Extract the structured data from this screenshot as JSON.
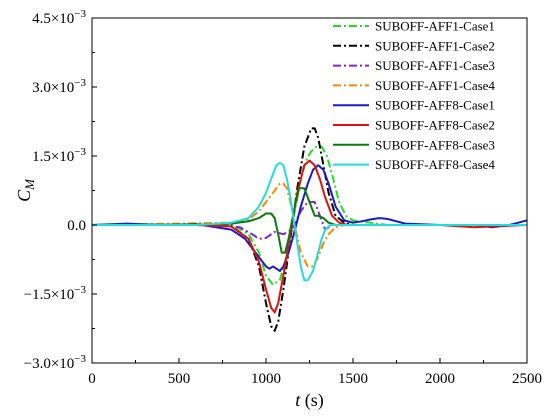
{
  "chart_data": {
    "type": "line",
    "xlabel": "t (s)",
    "ylabel": "C_M",
    "xlim": [
      0,
      2500
    ],
    "ylim": [
      -0.003,
      0.0045
    ],
    "x_ticks": [
      0,
      500,
      1000,
      1500,
      2000,
      2500
    ],
    "x_tick_labels": [
      "0",
      "500",
      "1000",
      "1500",
      "2000",
      "2500"
    ],
    "y_ticks": [
      -0.003,
      -0.0015,
      0,
      0.0015,
      0.003,
      0.0045
    ],
    "y_tick_labels": [
      "−3.0×10",
      "−1.5×10",
      "0.0",
      "1.5×10",
      "3.0×10",
      "4.5×10"
    ],
    "y_tick_exponents": [
      "−3",
      "−3",
      "",
      "−3",
      "−3",
      "−3"
    ],
    "grid": false,
    "legend_position": "top-right",
    "series": [
      {
        "name": "SUBOFF-AFF1-Case1",
        "color": "#22dd22",
        "dash": "dashdot",
        "x": [
          0,
          600,
          800,
          900,
          960,
          1000,
          1040,
          1080,
          1110,
          1140,
          1170,
          1200,
          1230,
          1260,
          1290,
          1320,
          1350,
          1380,
          1420,
          1460,
          1500,
          1700,
          2500
        ],
        "y": [
          0,
          0,
          2e-05,
          -0.0002,
          -0.0006,
          -0.0011,
          -0.0013,
          -0.0012,
          -0.0008,
          -0.0002,
          0.0004,
          0.001,
          0.0014,
          0.0016,
          0.0017,
          0.0017,
          0.0015,
          0.0011,
          0.0005,
          0.0002,
          0.0001,
          0,
          0
        ]
      },
      {
        "name": "SUBOFF-AFF1-Case2",
        "color": "#000000",
        "dash": "dashdot",
        "x": [
          0,
          600,
          800,
          900,
          960,
          1000,
          1030,
          1050,
          1070,
          1100,
          1140,
          1180,
          1220,
          1260,
          1280,
          1300,
          1330,
          1360,
          1400,
          1450,
          1500,
          1700,
          2500
        ],
        "y": [
          0,
          0,
          -2e-05,
          -0.0003,
          -0.0009,
          -0.0017,
          -0.0022,
          -0.0023,
          -0.0021,
          -0.0014,
          -0.0003,
          0.0008,
          0.0017,
          0.0021,
          0.0021,
          0.0019,
          0.0013,
          0.0007,
          0.0002,
          5e-05,
          0,
          0,
          0
        ]
      },
      {
        "name": "SUBOFF-AFF1-Case3",
        "color": "#8822cc",
        "dash": "dashdot",
        "x": [
          0,
          700,
          850,
          920,
          960,
          1000,
          1050,
          1100,
          1150,
          1200,
          1240,
          1280,
          1310,
          1340,
          1380,
          1420,
          1500,
          2500
        ],
        "y": [
          0,
          0,
          -5e-05,
          -0.0002,
          -0.0003,
          -0.00028,
          -0.00015,
          -0.0002,
          -0.0001,
          0.0003,
          0.0005,
          0.0005,
          0.0002,
          -0.0001,
          0,
          0,
          0,
          0
        ]
      },
      {
        "name": "SUBOFF-AFF1-Case4",
        "color": "#ff8800",
        "dash": "dashdot",
        "x": [
          0,
          500,
          800,
          900,
          960,
          1000,
          1040,
          1080,
          1100,
          1120,
          1140,
          1170,
          1200,
          1240,
          1270,
          1300,
          1330,
          1360,
          1400,
          1450,
          1500,
          2500
        ],
        "y": [
          0,
          3e-05,
          5e-05,
          0.00012,
          0.0003,
          0.0005,
          0.0007,
          0.0009,
          0.0009,
          0.0008,
          0.0005,
          -0.0001,
          -0.0006,
          -0.0009,
          -0.0009,
          -0.0007,
          -0.0004,
          -0.0002,
          -5e-05,
          0,
          0,
          0
        ]
      },
      {
        "name": "SUBOFF-AFF8-Case1",
        "color": "#1a1acc",
        "dash": "solid",
        "x": [
          0,
          200,
          400,
          600,
          800,
          880,
          920,
          960,
          1000,
          1020,
          1040,
          1060,
          1080,
          1100,
          1130,
          1160,
          1200,
          1240,
          1270,
          1300,
          1330,
          1360,
          1400,
          1450,
          1500,
          1550,
          1600,
          1650,
          1700,
          1750,
          1800,
          2000,
          2200,
          2300,
          2400,
          2450,
          2500
        ],
        "y": [
          0,
          3e-05,
          0,
          2e-05,
          -0.0001,
          -0.0003,
          -0.0005,
          -0.0007,
          -0.0009,
          -0.00095,
          -0.0009,
          -0.00095,
          -0.001,
          -0.0009,
          -0.0006,
          -0.0002,
          0.0004,
          0.0009,
          0.0012,
          0.0013,
          0.0012,
          0.0009,
          0.0004,
          0.0001,
          5e-05,
          8e-05,
          0.00012,
          0.00015,
          0.00013,
          8e-05,
          3e-05,
          0,
          0,
          -5e-05,
          0,
          5e-05,
          0.0001
        ]
      },
      {
        "name": "SUBOFF-AFF8-Case2",
        "color": "#dd1111",
        "dash": "solid",
        "x": [
          0,
          600,
          800,
          900,
          960,
          1000,
          1030,
          1050,
          1070,
          1100,
          1140,
          1180,
          1220,
          1250,
          1280,
          1310,
          1340,
          1380,
          1420,
          1470,
          1500,
          1700,
          2000,
          2200,
          2300,
          2500
        ],
        "y": [
          0,
          0,
          -3e-05,
          -0.0003,
          -0.0008,
          -0.0014,
          -0.0018,
          -0.0019,
          -0.0017,
          -0.0011,
          -0.0002,
          0.0007,
          0.0013,
          0.0014,
          0.0013,
          0.001,
          0.0006,
          0.0002,
          5e-05,
          0,
          0,
          0,
          0,
          -5e-05,
          -3e-05,
          0
        ]
      },
      {
        "name": "SUBOFF-AFF8-Case3",
        "color": "#0a7a0a",
        "dash": "solid",
        "x": [
          0,
          600,
          800,
          900,
          960,
          1000,
          1030,
          1050,
          1070,
          1090,
          1110,
          1130,
          1160,
          1190,
          1220,
          1250,
          1280,
          1300,
          1330,
          1360,
          1400,
          1450,
          1500,
          2500
        ],
        "y": [
          0,
          1e-05,
          3e-05,
          8e-05,
          0.00015,
          0.00025,
          0.00025,
          0.00015,
          -0.0002,
          -0.0006,
          -0.0006,
          -0.0003,
          0.0003,
          0.0008,
          0.0008,
          0.0005,
          0.0002,
          0.0002,
          0.00015,
          5e-05,
          0,
          0,
          0,
          0
        ]
      },
      {
        "name": "SUBOFF-AFF8-Case4",
        "color": "#22dddd",
        "dash": "solid",
        "x": [
          0,
          600,
          800,
          900,
          960,
          1000,
          1030,
          1060,
          1080,
          1100,
          1120,
          1140,
          1160,
          1180,
          1200,
          1220,
          1240,
          1270,
          1300,
          1320,
          1340,
          1370,
          1400,
          1450,
          1500,
          2500
        ],
        "y": [
          0,
          0,
          5e-05,
          0.00015,
          0.0004,
          0.0007,
          0.001,
          0.0013,
          0.00135,
          0.0013,
          0.001,
          0.0006,
          0.0001,
          -0.0004,
          -0.0009,
          -0.0012,
          -0.0012,
          -0.001,
          -0.0006,
          -0.0003,
          -0.0001,
          0,
          0,
          0,
          0,
          0
        ]
      }
    ]
  }
}
